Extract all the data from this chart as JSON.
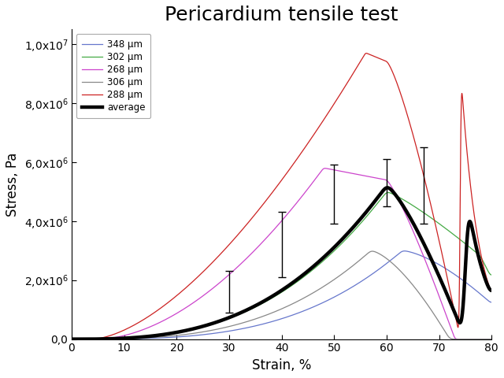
{
  "title": "Pericardium tensile test",
  "xlabel": "Strain, %",
  "ylabel": "Stress, Pa",
  "xlim": [
    0,
    80
  ],
  "ylim": [
    0,
    10500000.0
  ],
  "title_fontsize": 18,
  "label_fontsize": 12,
  "legend_entries": [
    "348 μm",
    "302 μm",
    "268 μm",
    "306 μm",
    "288 μm",
    "average"
  ],
  "colors": {
    "348": "#6677cc",
    "302": "#44aa44",
    "268": "#cc44cc",
    "306": "#888888",
    "288": "#cc2222",
    "average": "#000000"
  },
  "error_bar_positions": [
    30,
    40,
    50,
    60,
    67
  ],
  "error_bar_values": [
    1600000.0,
    3200000.0,
    4900000.0,
    5300000.0,
    5200000.0
  ],
  "error_bar_errors": [
    700000.0,
    1100000.0,
    1000000.0,
    800000.0,
    1300000.0
  ]
}
